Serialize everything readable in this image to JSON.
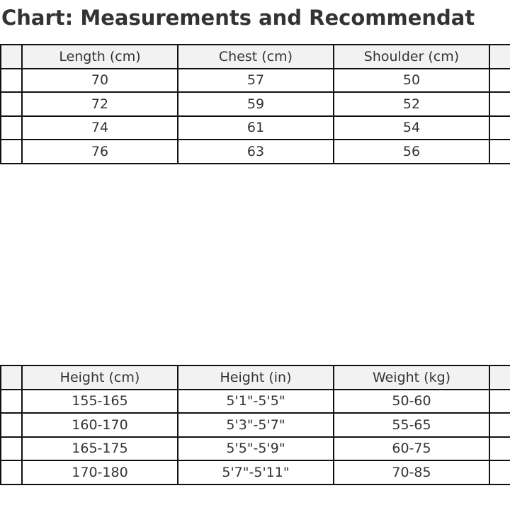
{
  "title": "Chart: Measurements and Recommendat",
  "measurements_table": {
    "headers": [
      "",
      "Length (cm)",
      "Chest (cm)",
      "Shoulder (cm)",
      ""
    ],
    "rows": [
      [
        "",
        "70",
        "57",
        "50",
        ""
      ],
      [
        "",
        "72",
        "59",
        "52",
        ""
      ],
      [
        "",
        "74",
        "61",
        "54",
        ""
      ],
      [
        "",
        "76",
        "63",
        "56",
        ""
      ]
    ]
  },
  "recommendations_table": {
    "headers": [
      "",
      "Height (cm)",
      "Height (in)",
      "Weight (kg)",
      ""
    ],
    "rows": [
      [
        "",
        "155-165",
        "5'1\"-5'5\"",
        "50-60",
        ""
      ],
      [
        "",
        "160-170",
        "5'3\"-5'7\"",
        "55-65",
        ""
      ],
      [
        "",
        "165-175",
        "5'5\"-5'9\"",
        "60-75",
        ""
      ],
      [
        "",
        "170-180",
        "5'7\"-5'11\"",
        "70-85",
        ""
      ]
    ]
  }
}
